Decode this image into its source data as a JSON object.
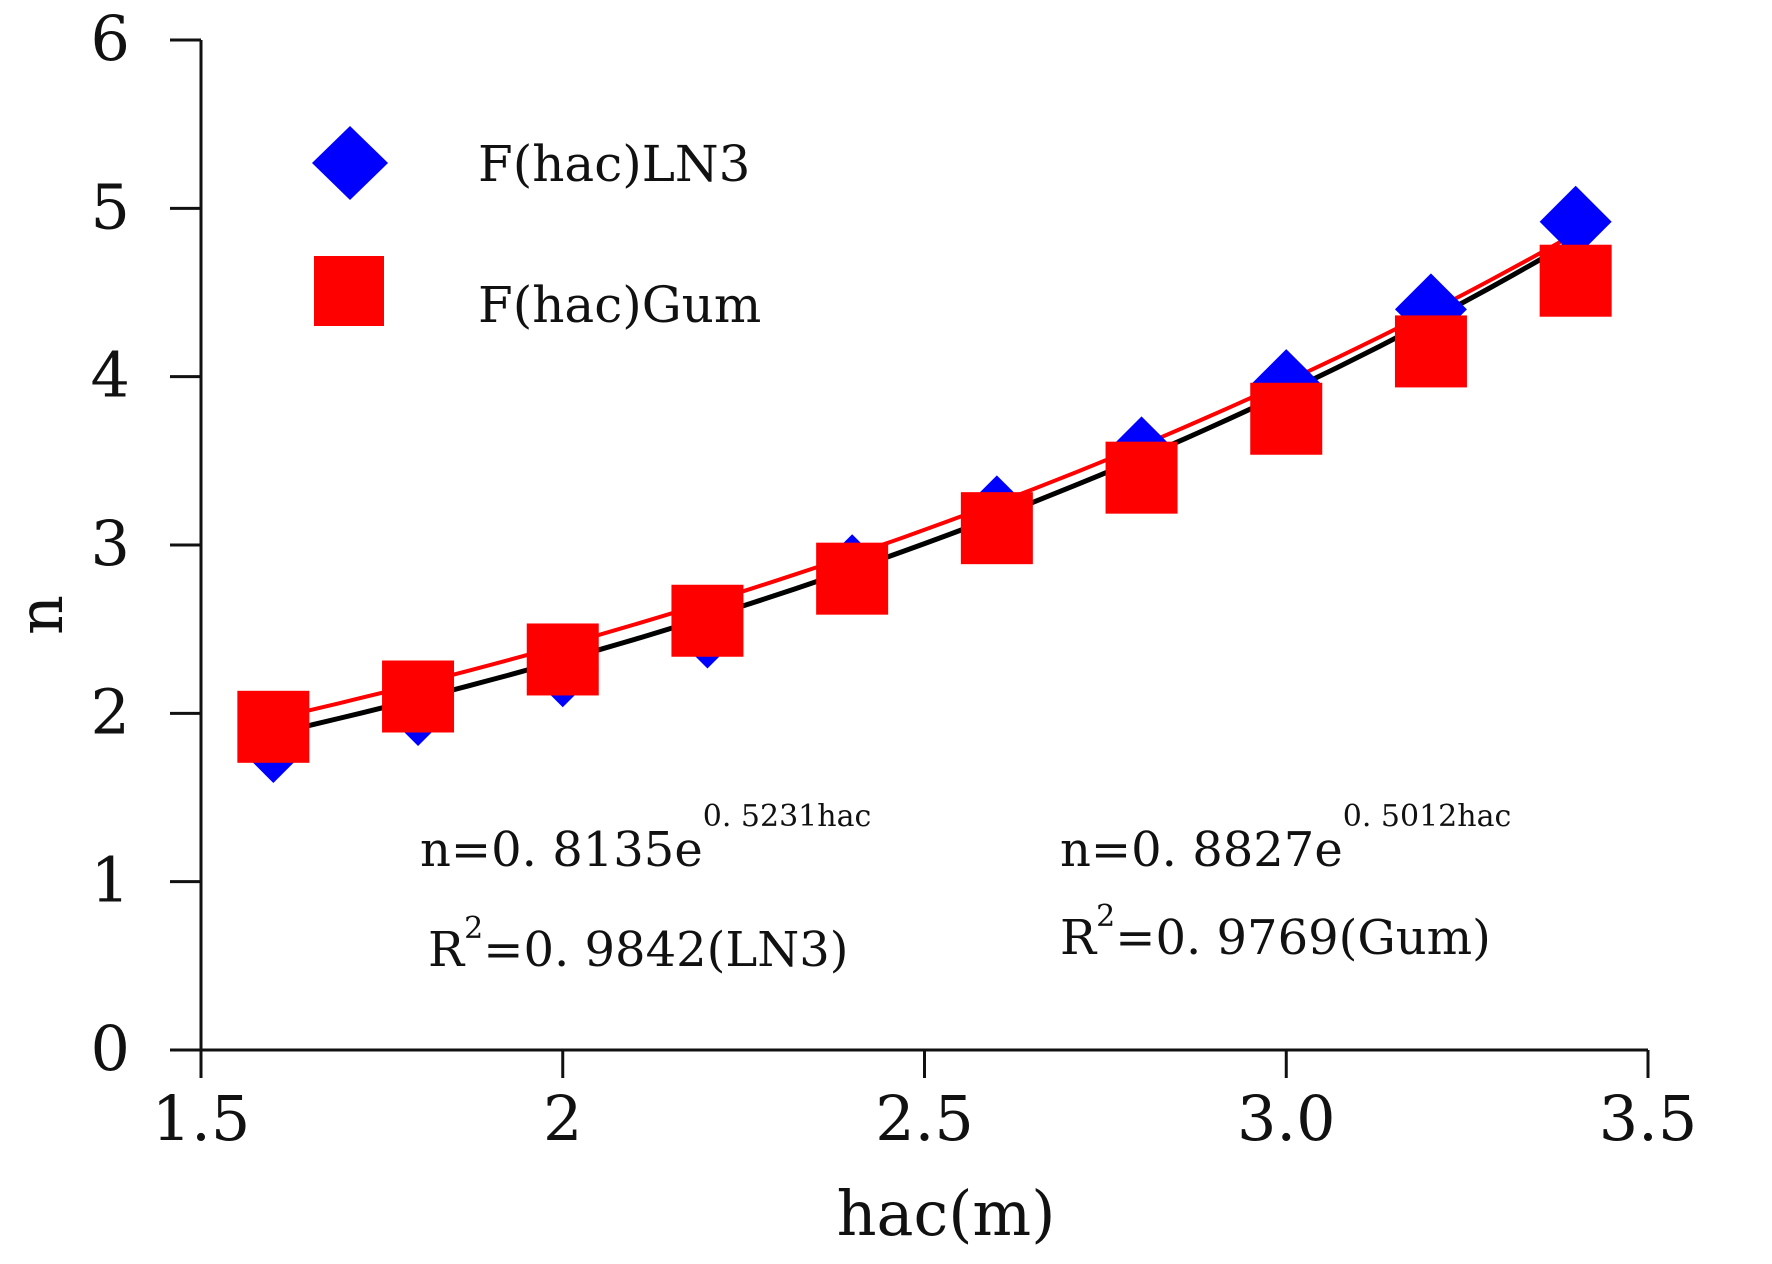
{
  "chart_data": {
    "type": "scatter",
    "title": "",
    "xlabel": "hac(m)",
    "ylabel": "n",
    "xlim": [
      1.5,
      3.5
    ],
    "ylim": [
      0,
      6
    ],
    "xticks": [
      1.5,
      2,
      2.5,
      3.0,
      3.5
    ],
    "xtick_labels": [
      "1.5",
      "2",
      "2.5",
      "3.0",
      "3.5"
    ],
    "yticks": [
      0,
      1,
      2,
      3,
      4,
      5,
      6
    ],
    "ytick_labels": [
      "0",
      "1",
      "2",
      "3",
      "4",
      "5",
      "6"
    ],
    "grid": false,
    "legend_position": "top-left",
    "series": [
      {
        "name": "F(hac)LN3",
        "marker": "diamond",
        "color": "#0000ff",
        "trend_color": "#000000",
        "x": [
          1.6,
          1.8,
          2.0,
          2.2,
          2.4,
          2.6,
          2.8,
          3.0,
          3.2,
          3.4
        ],
        "y": [
          1.8,
          2.02,
          2.25,
          2.48,
          2.85,
          3.2,
          3.55,
          3.95,
          4.4,
          4.92
        ],
        "fit": {
          "a": 0.8135,
          "b": 0.5231
        }
      },
      {
        "name": "F(hac)Gum",
        "marker": "square",
        "color": "#ff0000",
        "trend_color": "#ff0000",
        "x": [
          1.6,
          1.8,
          2.0,
          2.2,
          2.4,
          2.6,
          2.8,
          3.0,
          3.2,
          3.4
        ],
        "y": [
          1.92,
          2.1,
          2.32,
          2.55,
          2.8,
          3.1,
          3.4,
          3.75,
          4.15,
          4.57
        ],
        "fit": {
          "a": 0.8827,
          "b": 0.5012
        }
      }
    ],
    "annotations": [
      {
        "main": "n=0. 8135e",
        "sup": "0. 5231hac",
        "r_prefix": "R",
        "r_sup": "2",
        "r_rest": "=0. 9842(LN3)"
      },
      {
        "main": "n=0. 8827e",
        "sup": "0. 5012hac",
        "r_prefix": "R",
        "r_sup": "2",
        "r_rest": "=0. 9769(Gum)"
      }
    ]
  }
}
